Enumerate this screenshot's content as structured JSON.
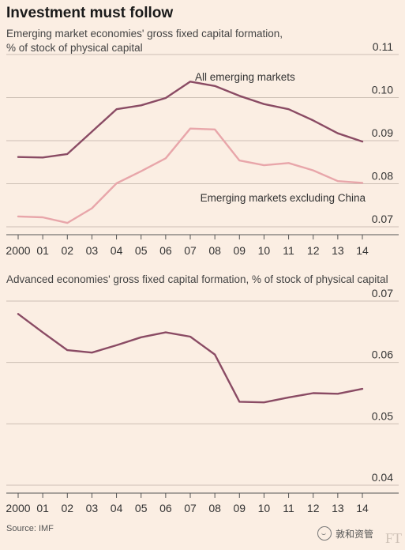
{
  "header": {
    "title": "Investment must follow",
    "subtitle_line1": "Emerging market economies' gross fixed capital formation,",
    "subtitle_line2": "% of stock of physical capital",
    "subtitle2": "Advanced economies' gross fixed capital formation, % of stock of physical capital"
  },
  "footer": {
    "source": "Source: IMF",
    "watermark": "敦和资管",
    "logo": "FT"
  },
  "colors": {
    "background": "#fbeee3",
    "emerging_all": "#8a4b64",
    "emerging_ex_china": "#e8a6aa",
    "advanced": "#8a4b64",
    "gridline": "#cdbfb4"
  },
  "chart_data": [
    {
      "type": "line",
      "x": [
        "2000",
        "01",
        "02",
        "03",
        "04",
        "05",
        "06",
        "07",
        "08",
        "09",
        "10",
        "11",
        "12",
        "13",
        "14"
      ],
      "ylim": [
        0.07,
        0.11
      ],
      "yticks": [
        "0.11",
        "0.10",
        "0.09",
        "0.08",
        "0.07"
      ],
      "ytick_values": [
        0.11,
        0.1,
        0.09,
        0.08,
        0.07
      ],
      "series": [
        {
          "name": "All emerging markets",
          "values": [
            0.0862,
            0.0861,
            0.0869,
            0.0921,
            0.0973,
            0.0982,
            0.0999,
            0.1037,
            0.1027,
            0.1004,
            0.0985,
            0.0973,
            0.0947,
            0.0917,
            0.0898
          ]
        },
        {
          "name": "Emerging markets excluding China",
          "values": [
            0.0724,
            0.0722,
            0.0709,
            0.0743,
            0.0801,
            0.0829,
            0.0859,
            0.0928,
            0.0926,
            0.0854,
            0.0843,
            0.0848,
            0.0831,
            0.0806,
            0.0802
          ]
        }
      ]
    },
    {
      "type": "line",
      "x": [
        "2000",
        "01",
        "02",
        "03",
        "04",
        "05",
        "06",
        "07",
        "08",
        "09",
        "10",
        "11",
        "12",
        "13",
        "14"
      ],
      "ylim": [
        0.04,
        0.07
      ],
      "yticks": [
        "0.07",
        "0.06",
        "0.05",
        "0.04"
      ],
      "ytick_values": [
        0.07,
        0.06,
        0.05,
        0.04
      ],
      "series": [
        {
          "values": [
            0.0679,
            0.0649,
            0.062,
            0.0616,
            0.0628,
            0.0641,
            0.0649,
            0.0642,
            0.0613,
            0.0536,
            0.0535,
            0.0543,
            0.055,
            0.0549,
            0.0557
          ]
        }
      ]
    }
  ]
}
